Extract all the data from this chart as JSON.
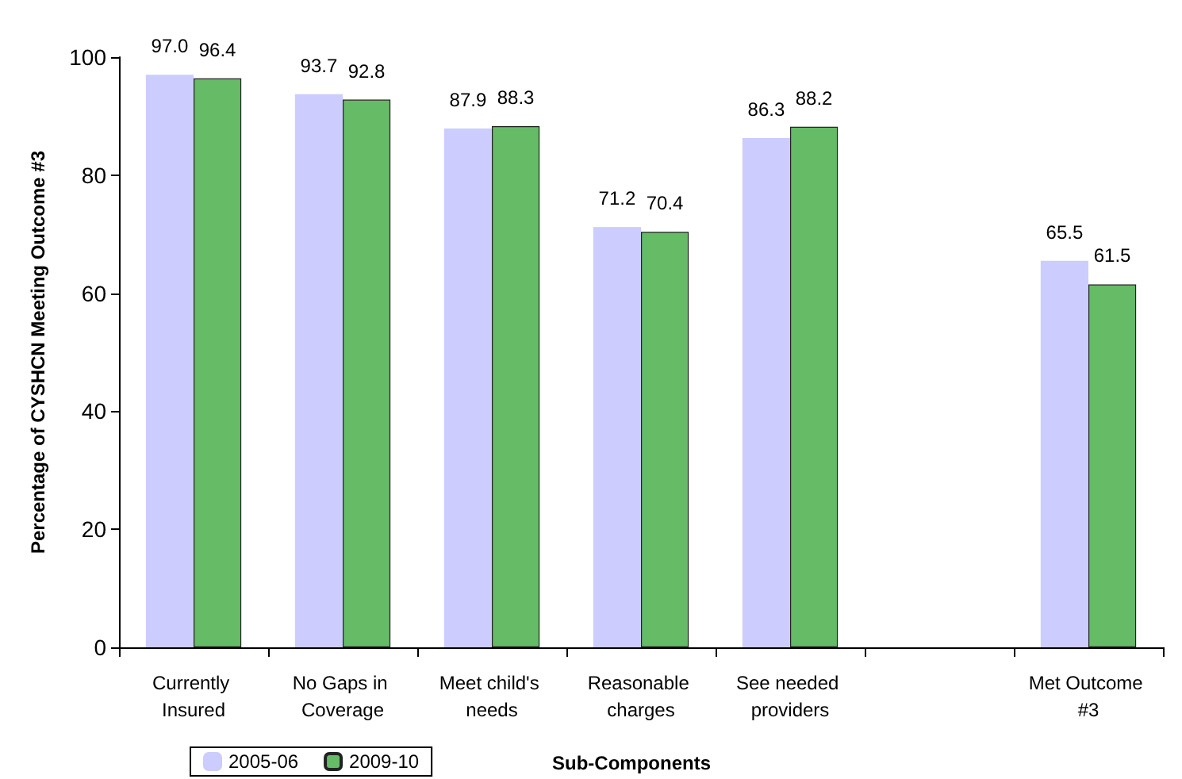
{
  "chart_data": {
    "type": "bar",
    "xlabel": "Sub-Components",
    "ylabel": "Percentage of CYSHCN Meeting Outcome #3",
    "categories": [
      "Currently Insured",
      "No Gaps in Coverage",
      "Meet child's needs",
      "Reasonable charges",
      "See needed providers",
      null,
      "Met Outcome #3"
    ],
    "series": [
      {
        "name": "2005-06",
        "color": "#ccccff",
        "values": [
          97.0,
          93.7,
          87.9,
          71.2,
          86.3,
          null,
          65.5
        ],
        "value_labels": [
          "97.0",
          "93.7",
          "87.9",
          "71.2",
          "86.3",
          null,
          "65.5"
        ]
      },
      {
        "name": "2009-10",
        "color": "#66bb66",
        "values": [
          96.4,
          92.8,
          88.3,
          70.4,
          88.2,
          null,
          61.5
        ],
        "value_labels": [
          "96.4",
          "92.8",
          "88.3",
          "70.4",
          "88.2",
          null,
          "61.5"
        ]
      }
    ],
    "ylim": [
      0,
      100
    ],
    "yticks": [
      0,
      20,
      40,
      60,
      80,
      100
    ],
    "grid": false,
    "legend": "bottom left"
  }
}
